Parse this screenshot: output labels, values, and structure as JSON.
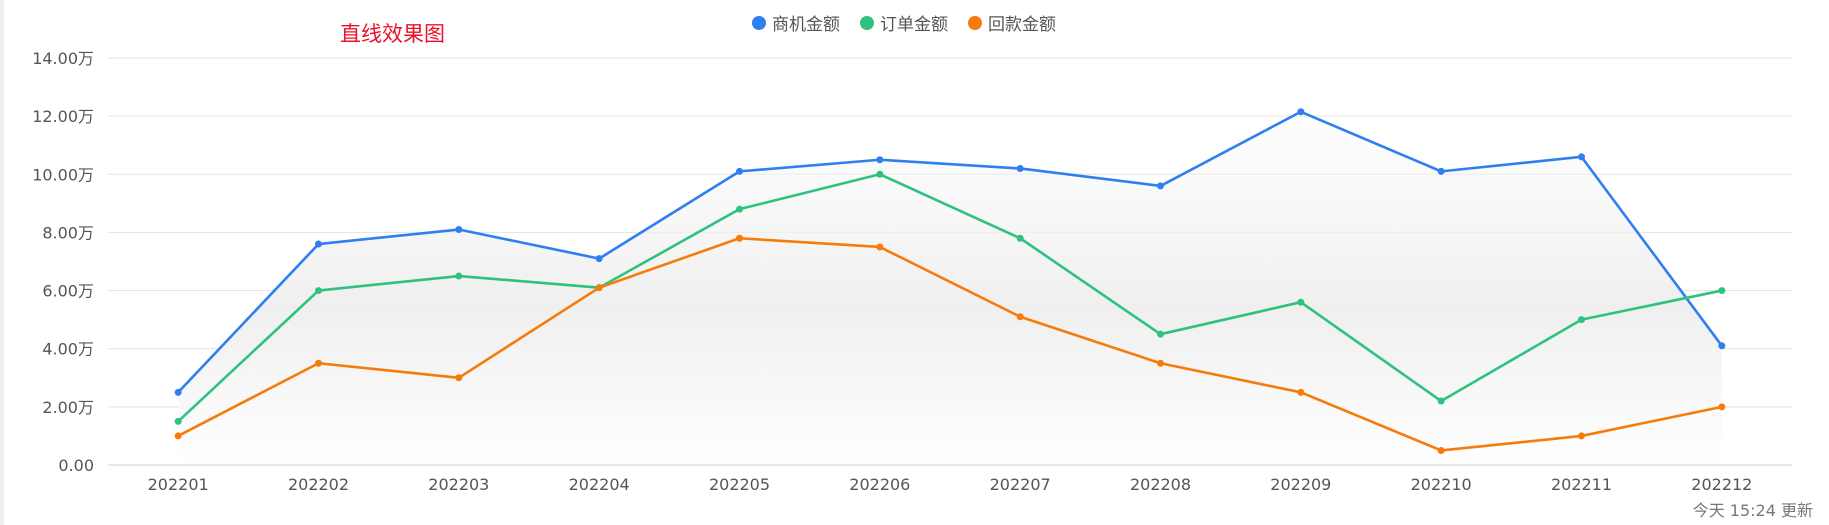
{
  "title": "直线效果图",
  "footer_note": "今天 15:24 更新",
  "colors": {
    "series_1": "#2f7ff0",
    "series_2": "#2ec27e",
    "series_3": "#f57c0a",
    "grid": "#e3e3e3",
    "axis_text": "#555555"
  },
  "chart_data": {
    "type": "line",
    "categories": [
      "202201",
      "202202",
      "202203",
      "202204",
      "202205",
      "202206",
      "202207",
      "202208",
      "202209",
      "202210",
      "202211",
      "202212"
    ],
    "series": [
      {
        "name": "商机金额",
        "values": [
          2.5,
          7.6,
          8.1,
          7.1,
          10.1,
          10.5,
          10.2,
          9.6,
          12.15,
          10.1,
          10.6,
          4.1
        ]
      },
      {
        "name": "订单金额",
        "values": [
          1.5,
          6.0,
          6.5,
          6.1,
          8.8,
          10.0,
          7.8,
          4.5,
          5.6,
          2.2,
          5.0,
          6.0
        ]
      },
      {
        "name": "回款金额",
        "values": [
          1.0,
          3.5,
          3.0,
          6.1,
          7.8,
          7.5,
          5.1,
          3.5,
          2.5,
          0.5,
          1.0,
          2.0
        ]
      }
    ],
    "y_ticks": [
      "0.00",
      "2.00万",
      "4.00万",
      "6.00万",
      "8.00万",
      "10.00万",
      "12.00万",
      "14.00万"
    ],
    "ylim": [
      0,
      14
    ],
    "grid": true,
    "legend_position": "top-center"
  }
}
